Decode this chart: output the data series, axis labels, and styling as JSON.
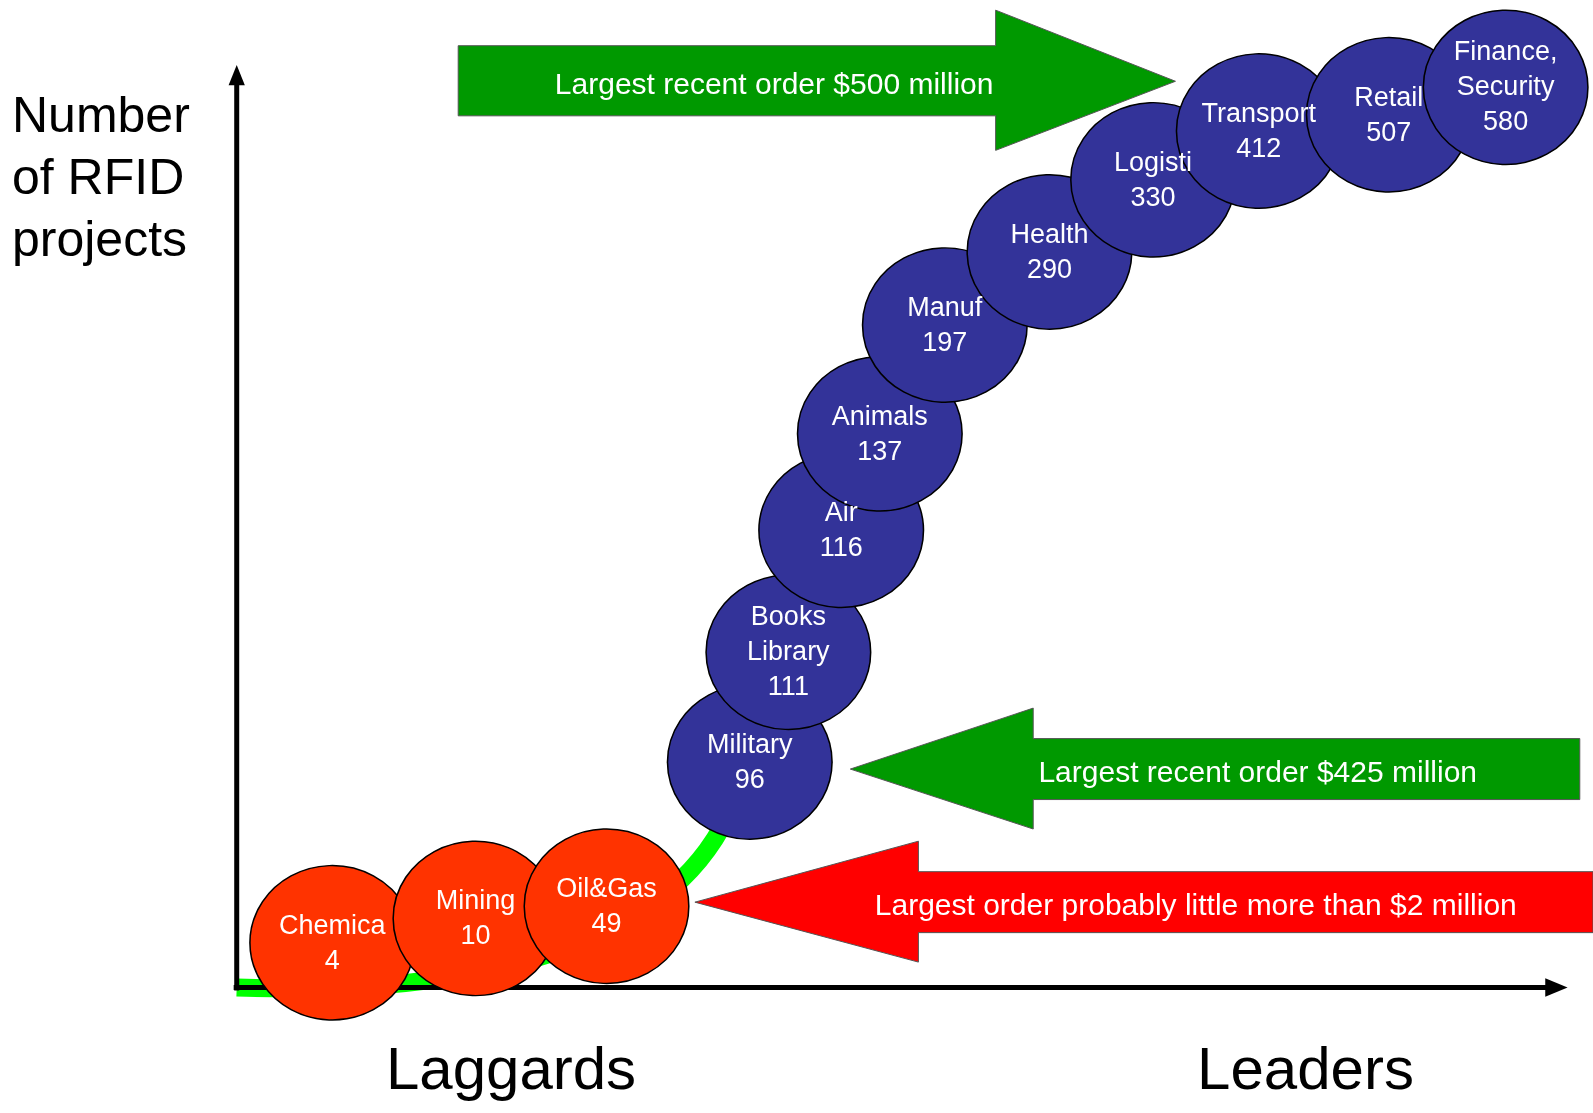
{
  "chart_data": {
    "type": "other",
    "ylabel": "Number of RFID projects",
    "categories": [
      "Chemica",
      "Mining",
      "Oil&Gas",
      "Military",
      "Books Library",
      "Air",
      "Animals",
      "Manuf",
      "Health",
      "Logisti",
      "Transport",
      "Retail",
      "Finance, Security"
    ],
    "values": [
      4,
      10,
      49,
      96,
      111,
      116,
      137,
      197,
      290,
      330,
      412,
      507,
      580
    ],
    "colors": [
      "#ff3300",
      "#ff3300",
      "#ff3300",
      "#333399",
      "#333399",
      "#333399",
      "#333399",
      "#333399",
      "#333399",
      "#333399",
      "#333399",
      "#333399",
      "#333399"
    ],
    "data_labels": true,
    "annotations": [
      "Largest recent order $500 million",
      "Largest recent order $425 million",
      "Largest order probably little more than $2 million",
      "Laggards",
      "Leaders"
    ]
  }
}
